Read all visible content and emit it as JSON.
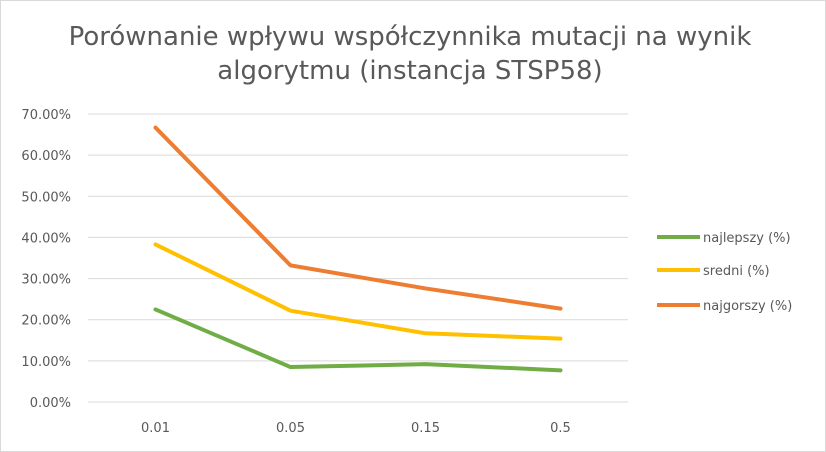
{
  "chart_data": {
    "type": "line",
    "title": "Porównanie wpływu współczynnika mutacji na wynik algorytmu (instancja STSP58)",
    "categories": [
      "0.01",
      "0.05",
      "0.15",
      "0.5"
    ],
    "y_tick_labels": [
      "0.00%",
      "10.00%",
      "20.00%",
      "30.00%",
      "40.00%",
      "50.00%",
      "60.00%",
      "70.00%"
    ],
    "ylim": [
      0,
      70
    ],
    "y_unit": "%",
    "grid": "horizontal",
    "legend_position": "right",
    "series": [
      {
        "name": "najlepszy (%)",
        "color": "#70ad47",
        "values": [
          22.5,
          8.5,
          9.2,
          7.7
        ]
      },
      {
        "name": "sredni (%)",
        "color": "#ffc000",
        "values": [
          38.3,
          22.2,
          16.7,
          15.4
        ]
      },
      {
        "name": "najgorszy (%)",
        "color": "#ed7d31",
        "values": [
          66.7,
          33.2,
          27.6,
          22.7
        ]
      }
    ]
  }
}
